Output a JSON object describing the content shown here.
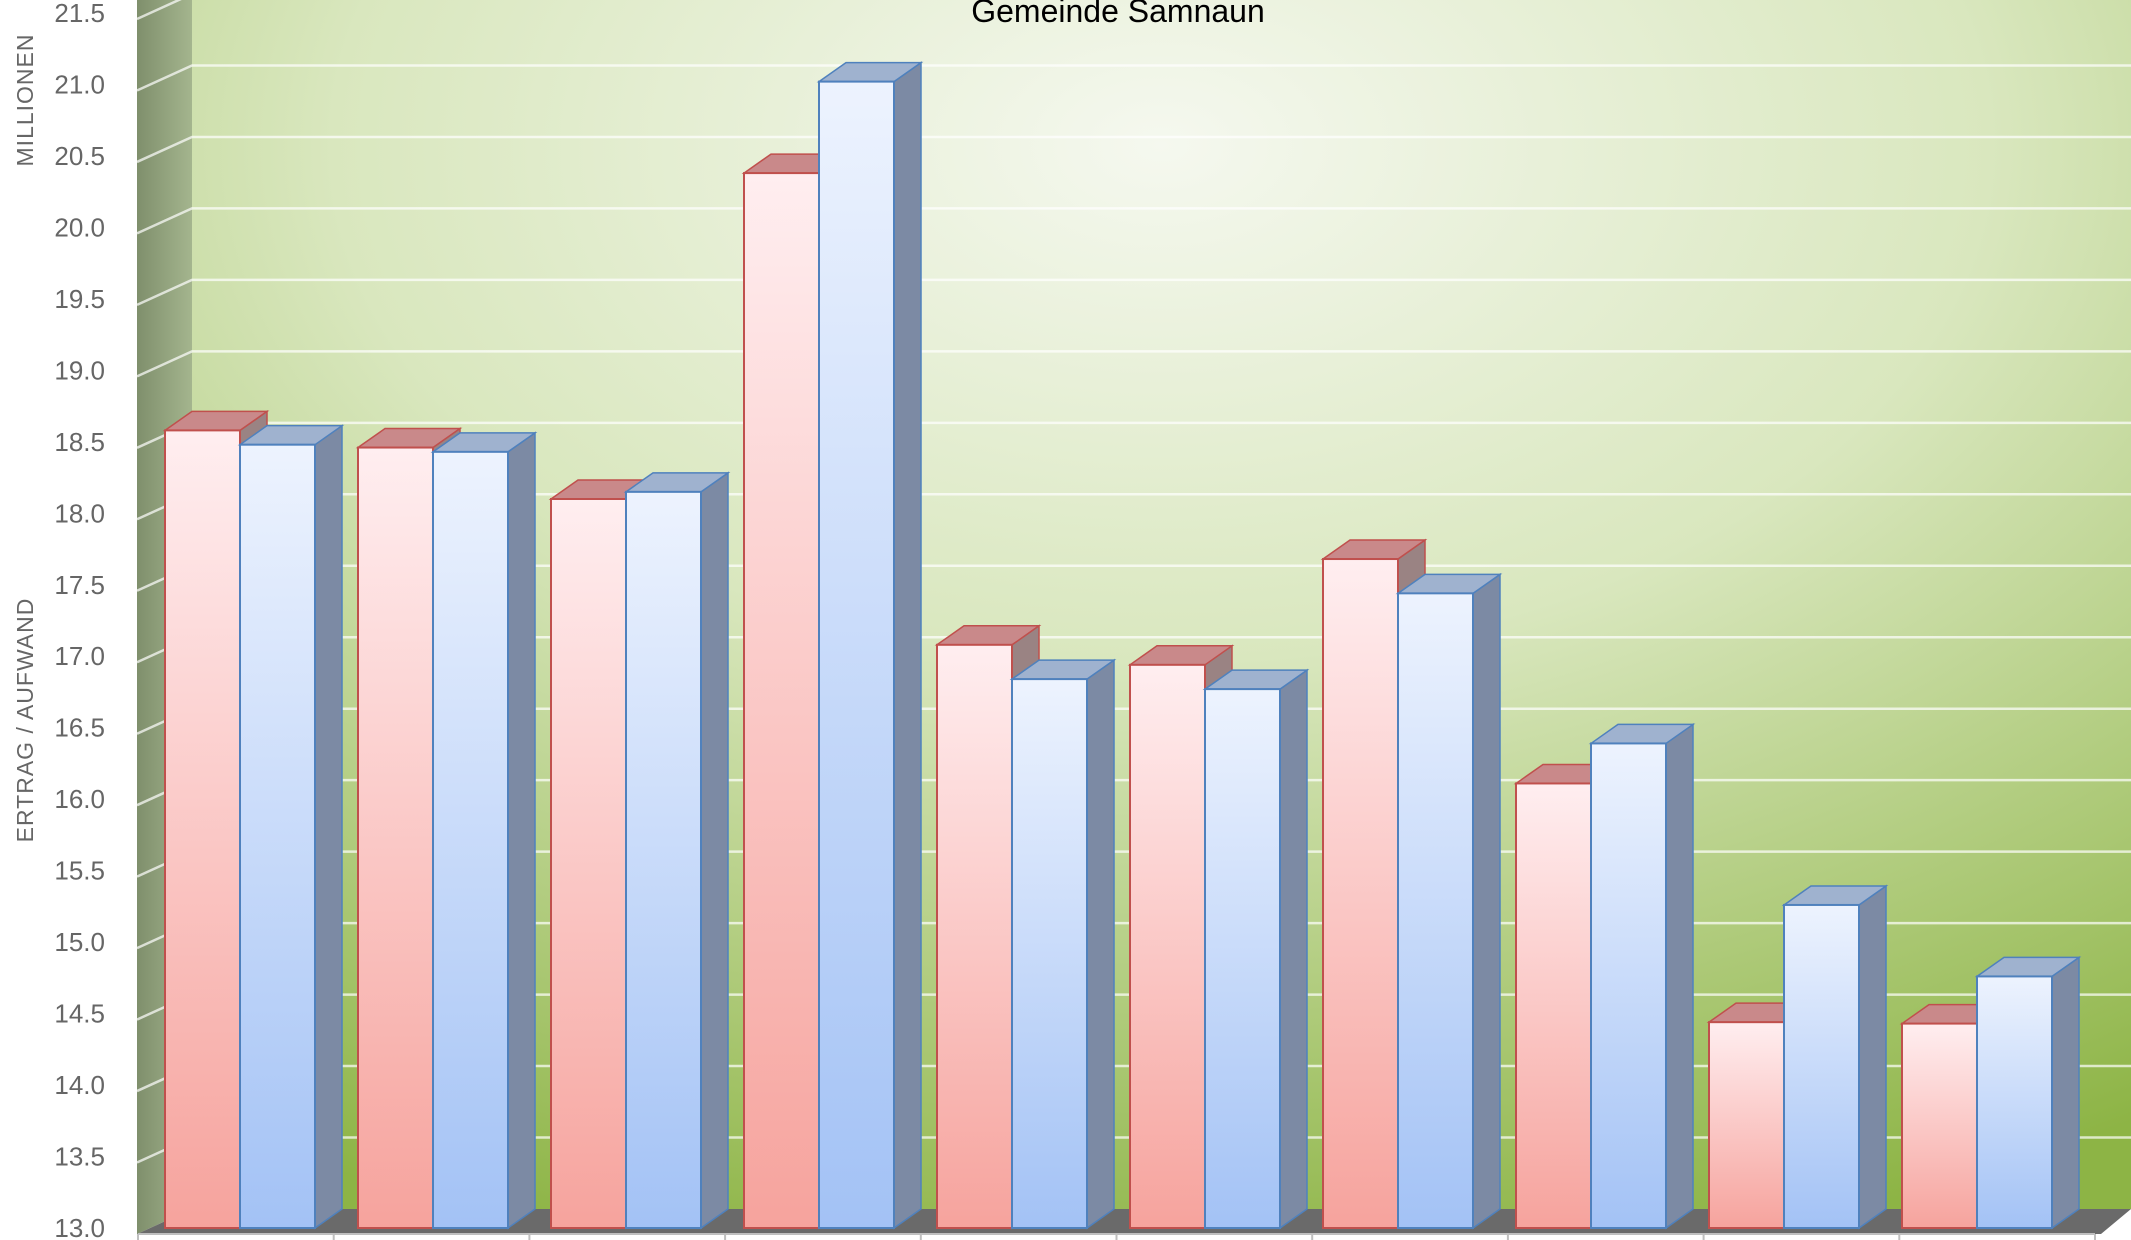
{
  "chart_data": {
    "type": "bar",
    "title": "Gemeinde Samnaun",
    "ylabel_top": "MILLIONEN",
    "ylabel": "ERTRAG / AUFWAND",
    "ylim": [
      13.0,
      21.5
    ],
    "yticks": [
      "13.0",
      "13.5",
      "14.0",
      "14.5",
      "15.0",
      "15.5",
      "16.0",
      "16.5",
      "17.0",
      "17.5",
      "18.0",
      "18.5",
      "19.0",
      "19.5",
      "20.0",
      "20.5",
      "21.0",
      "21.5"
    ],
    "categories": [
      "",
      "",
      "",
      "",
      "",
      "",
      "",
      "",
      "",
      ""
    ],
    "series": [
      {
        "values": [
          18.58,
          18.46,
          18.1,
          20.38,
          17.08,
          16.94,
          17.68,
          16.11,
          14.44,
          14.43
        ]
      },
      {
        "values": [
          18.48,
          18.43,
          18.15,
          21.02,
          16.84,
          16.77,
          17.44,
          16.39,
          15.26,
          14.76
        ]
      }
    ],
    "grid": true,
    "legend": "none",
    "colors": {
      "series_a_light": "#ffe9eb",
      "series_a_dark": "#f6a7a2",
      "series_a_edge": "#c0504d",
      "series_a_top": "#c9898a",
      "series_a_side": "#9a8383",
      "series_b_light": "#e8f0fd",
      "series_b_dark": "#a8c6f6",
      "series_b_edge": "#4f81bd",
      "series_b_top": "#9fb2cf",
      "series_b_side": "#7c8aa4",
      "wall_center": "#f4f7ee",
      "wall_edge": "#8fb446",
      "wall_left": "#8a9a78",
      "floor": "#6a6a6a"
    }
  }
}
